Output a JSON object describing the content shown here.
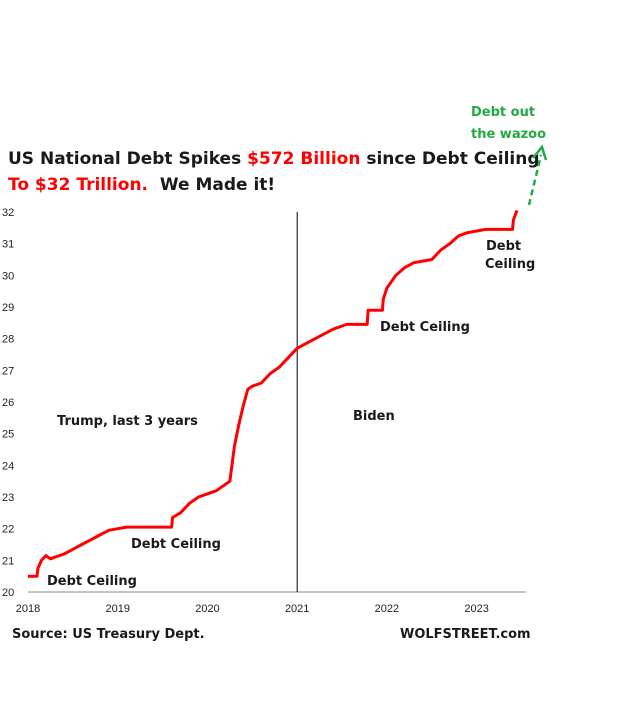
{
  "chart_data": {
    "type": "line",
    "title_line1": {
      "part1": "US National Debt Spikes ",
      "highlight": "$572 Billion",
      "part2": " since Debt Ceiling"
    },
    "title_line2": {
      "highlight": "To $32 Trillion.",
      "rest": "  We Made it!"
    },
    "colors": {
      "line": "#ff0000",
      "highlight": "#ff0000",
      "callout": "#22aa44",
      "divider": "#000000",
      "text": "#1a1a1a"
    },
    "ylim": [
      20,
      32
    ],
    "y_ticks": [
      "32",
      "31",
      "30",
      "29",
      "28",
      "27",
      "26",
      "25",
      "24",
      "23",
      "22",
      "21",
      "20"
    ],
    "xlim": [
      2018.0,
      2023.55
    ],
    "x_ticks": [
      "2018",
      "2019",
      "2020",
      "2021",
      "2022",
      "2023"
    ],
    "divider_x": 2021.0,
    "series": [
      {
        "x": [
          2018.0,
          2018.1,
          2018.11,
          2018.15,
          2018.2,
          2018.25,
          2018.3,
          2018.4,
          2018.5,
          2018.6,
          2018.7,
          2018.8,
          2018.9,
          2019.0,
          2019.1,
          2019.15,
          2019.3,
          2019.5,
          2019.6,
          2019.61,
          2019.7,
          2019.8,
          2019.9,
          2020.0,
          2020.1,
          2020.2,
          2020.25,
          2020.3,
          2020.35,
          2020.4,
          2020.45,
          2020.5,
          2020.6,
          2020.7,
          2020.8,
          2020.9,
          2021.0,
          2021.1,
          2021.2,
          2021.3,
          2021.4,
          2021.5,
          2021.55,
          2021.56,
          2021.6,
          2021.7,
          2021.75,
          2021.78,
          2021.79,
          2021.95,
          2021.96,
          2022.0,
          2022.1,
          2022.2,
          2022.3,
          2022.4,
          2022.5,
          2022.6,
          2022.7,
          2022.8,
          2022.9,
          2023.0,
          2023.1,
          2023.2,
          2023.3,
          2023.4,
          2023.41,
          2023.45
        ],
        "values": [
          20.5,
          20.5,
          20.75,
          21.0,
          21.15,
          21.05,
          21.1,
          21.2,
          21.35,
          21.5,
          21.65,
          21.8,
          21.95,
          22.0,
          22.05,
          22.05,
          22.05,
          22.05,
          22.05,
          22.35,
          22.5,
          22.8,
          23.0,
          23.1,
          23.2,
          23.4,
          23.5,
          24.6,
          25.3,
          25.9,
          26.4,
          26.5,
          26.6,
          26.9,
          27.1,
          27.4,
          27.7,
          27.85,
          28.0,
          28.15,
          28.3,
          28.4,
          28.45,
          28.45,
          28.45,
          28.45,
          28.45,
          28.45,
          28.9,
          28.9,
          29.25,
          29.6,
          30.0,
          30.25,
          30.4,
          30.45,
          30.5,
          30.8,
          31.0,
          31.25,
          31.35,
          31.4,
          31.45,
          31.45,
          31.45,
          31.45,
          31.75,
          32.05
        ]
      }
    ],
    "annotations": {
      "debt_ceiling_2018": "Debt Ceiling",
      "debt_ceiling_2019": "Debt Ceiling",
      "debt_ceiling_2021": "Debt Ceiling",
      "debt_ceiling_2023_l1": "Debt",
      "debt_ceiling_2023_l2": "Ceiling",
      "trump": "Trump, last 3 years",
      "biden": "Biden",
      "wazoo_l1": "Debt out",
      "wazoo_l2": "the wazoo"
    },
    "source": "Source: US Treasury Dept.",
    "brand": "WOLFSTREET.com",
    "grid": false,
    "legend": "none"
  }
}
